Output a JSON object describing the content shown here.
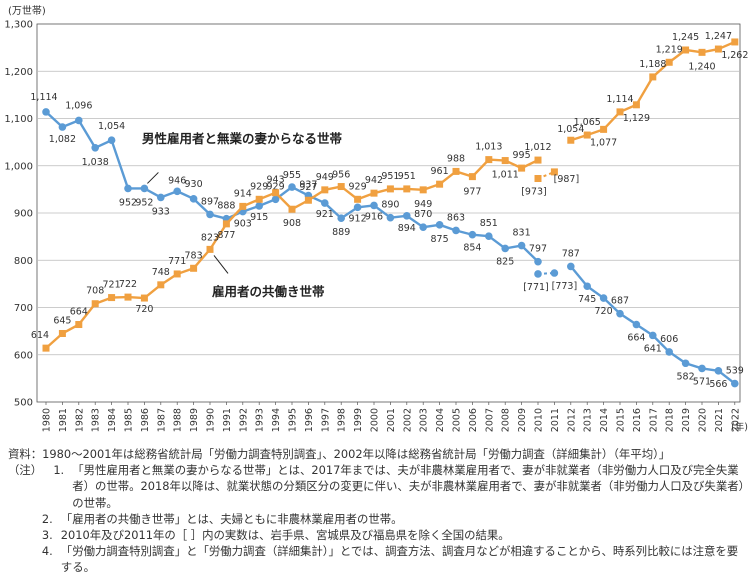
{
  "chart_data": {
    "type": "line",
    "unit_label": "(万世帯)",
    "x_unit_label": "(年)",
    "ylim": [
      500,
      1300
    ],
    "yticks": [
      500,
      600,
      700,
      800,
      900,
      1000,
      1100,
      1200,
      1300
    ],
    "ytick_labels": [
      "500",
      "600",
      "700",
      "800",
      "900",
      "1,000",
      "1,100",
      "1,200",
      "1,300"
    ],
    "grid": "horizontal",
    "categories": [
      "1980",
      "1981",
      "1982",
      "1983",
      "1984",
      "1985",
      "1986",
      "1987",
      "1988",
      "1989",
      "1990",
      "1991",
      "1992",
      "1993",
      "1994",
      "1995",
      "1996",
      "1997",
      "1998",
      "1999",
      "2000",
      "2001",
      "2002",
      "2003",
      "2004",
      "2005",
      "2006",
      "2007",
      "2008",
      "2009",
      "2010",
      "2011",
      "2012",
      "2013",
      "2014",
      "2015",
      "2016",
      "2017",
      "2018",
      "2019",
      "2020",
      "2021",
      "2022"
    ],
    "series": [
      {
        "name": "男性雇用者と無業の妻からなる世帯",
        "color": "#5b9bd5",
        "marker": "circle",
        "values": [
          1114,
          1082,
          1096,
          1038,
          1054,
          952,
          952,
          933,
          946,
          930,
          897,
          888,
          903,
          915,
          929,
          955,
          937,
          921,
          889,
          912,
          916,
          890,
          894,
          870,
          875,
          863,
          854,
          851,
          825,
          831,
          797,
          null,
          787,
          745,
          720,
          687,
          664,
          641,
          606,
          582,
          571,
          566,
          539
        ],
        "bracket_values": {
          "2010": 771,
          "2011": 773
        },
        "labels": [
          "1,114",
          "1,082",
          "1,096",
          "1,038",
          "1,054",
          "952",
          "952",
          "933",
          "946",
          "930",
          "897",
          "888",
          "903",
          "915",
          "929",
          "955",
          "937",
          "921",
          "889",
          "912",
          "916",
          "890",
          "894",
          "870",
          "875",
          "863",
          "854",
          "851",
          "825",
          "831",
          "797",
          "",
          "787",
          "745",
          "720",
          "687",
          "664",
          "641",
          "606",
          "582",
          "571",
          "566",
          "539"
        ],
        "bracket_labels": [
          "[771]",
          "[773]"
        ]
      },
      {
        "name": "雇用者の共働き世帯",
        "color": "#f0a040",
        "marker": "square",
        "values": [
          614,
          645,
          664,
          708,
          721,
          722,
          720,
          748,
          771,
          783,
          823,
          877,
          914,
          929,
          943,
          908,
          927,
          949,
          956,
          929,
          942,
          951,
          951,
          949,
          961,
          988,
          977,
          1013,
          1011,
          995,
          1012,
          null,
          1054,
          1065,
          1077,
          1114,
          1129,
          1188,
          1219,
          1245,
          1240,
          1247,
          1262
        ],
        "bracket_values": {
          "2010": 973,
          "2011": 987
        },
        "labels": [
          "614",
          "645",
          "664",
          "708",
          "721",
          "722",
          "720",
          "748",
          "771",
          "783",
          "823",
          "877",
          "914",
          "929",
          "943",
          "908",
          "927",
          "949",
          "956",
          "929",
          "942",
          "951",
          "951",
          "949",
          "961",
          "988",
          "977",
          "1,013",
          "1,011",
          "995",
          "1,012",
          "",
          "1,054",
          "1,065",
          "1,077",
          "1,114",
          "1,129",
          "1,188",
          "1,219",
          "1,245",
          "1,240",
          "1,247",
          "1,262"
        ],
        "bracket_labels": [
          "[973]",
          "[987]"
        ]
      }
    ],
    "annotations": [
      "男性雇用者と無業の妻からなる世帯",
      "雇用者の共働き世帯"
    ]
  },
  "notes": {
    "source": "資料：1980～2001年は総務省統計局「労働力調査特別調査」、2002年以降は総務省統計局「労働力調査（詳細集計）（年平均）」",
    "label": "（注）",
    "items": [
      {
        "num": "1.",
        "text": "「男性雇用者と無業の妻からなる世帯」とは、2017年までは、夫が非農林業雇用者で、妻が非就業者（非労働力人口及び完全失業者）の世帯。2018年以降は、就業状態の分類区分の変更に伴い、夫が非農林業雇用者で、妻が非就業者（非労働力人口及び失業者）の世帯。"
      },
      {
        "num": "2.",
        "text": "「雇用者の共働き世帯」とは、夫婦ともに非農林業雇用者の世帯。"
      },
      {
        "num": "3.",
        "text": "2010年及び2011年の［ ］内の実数は、岩手県、宮城県及び福島県を除く全国の結果。"
      },
      {
        "num": "4.",
        "text": "「労働力調査特別調査」と「労働力調査（詳細集計）」とでは、調査方法、調査月などが相違することから、時系列比較には注意を要する。"
      }
    ]
  }
}
